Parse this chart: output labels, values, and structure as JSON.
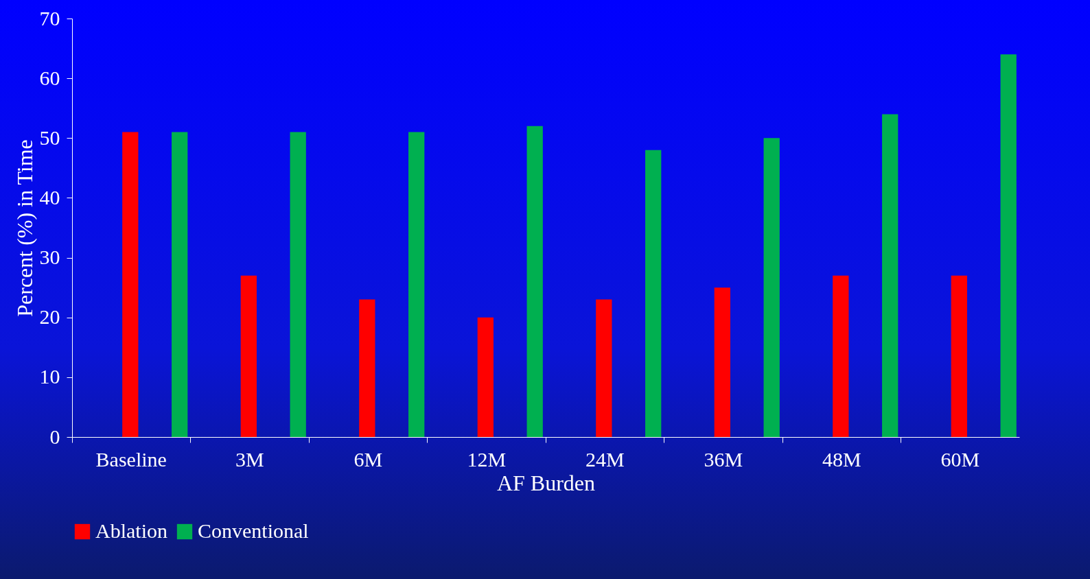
{
  "chart_data": {
    "type": "bar",
    "xlabel": "AF Burden",
    "ylabel": "Percent (%) in Time",
    "categories": [
      "Baseline",
      "3M",
      "6M",
      "12M",
      "24M",
      "36M",
      "48M",
      "60M"
    ],
    "series": [
      {
        "name": "Ablation",
        "color": "#ff0000",
        "values": [
          51,
          27,
          23,
          20,
          23,
          25,
          27,
          27
        ]
      },
      {
        "name": "Conventional",
        "color": "#00b050",
        "values": [
          51,
          51,
          51,
          52,
          48,
          50,
          54,
          64
        ]
      }
    ],
    "ylim": [
      0,
      70
    ],
    "yticks": [
      0,
      10,
      20,
      30,
      40,
      50,
      60,
      70
    ],
    "grid": false,
    "legend": "bottom"
  }
}
